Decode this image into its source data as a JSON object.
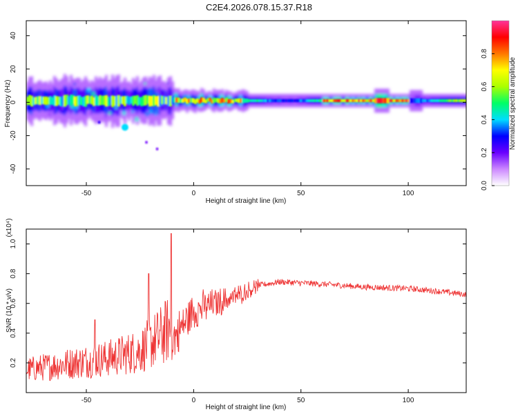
{
  "title": "C2E4.2026.078.15.37.R18",
  "chart_data": [
    {
      "type": "heatmap",
      "name": "spectrogram",
      "xlabel": "Height of straight line (km)",
      "ylabel": "Frequency (Hz)",
      "xlim": [
        -78,
        127
      ],
      "ylim": [
        -50,
        49
      ],
      "xticks": [
        "-50",
        "0",
        "50",
        "100"
      ],
      "xtick_values": [
        -50,
        0,
        50,
        100
      ],
      "yticks": [
        "-40",
        "-20",
        "0",
        "20",
        "40"
      ],
      "ytick_values": [
        -40,
        -20,
        0,
        20,
        40
      ],
      "colorbar": {
        "label": "Normalized spectral amplitude",
        "range": [
          0.0,
          1.0
        ],
        "ticks": [
          "0.0",
          "0.2",
          "0.4",
          "0.6",
          "0.8"
        ],
        "tick_values": [
          0.0,
          0.2,
          0.4,
          0.6,
          0.8
        ],
        "colors": [
          "#ffffff",
          "#cc88ff",
          "#6a00ff",
          "#0000ff",
          "#00ddff",
          "#00ff66",
          "#aaff00",
          "#ffff00",
          "#ff7700",
          "#ff0000",
          "#ff3399"
        ]
      },
      "band_center_hz": 1,
      "annotations": [
        {
          "label": "isolated blob",
          "x": -32,
          "y": -15,
          "amplitude": 0.3
        },
        {
          "label": "weak points",
          "x": -22,
          "y": -24,
          "amplitude": 0.08
        },
        {
          "label": "weak points",
          "x": -17,
          "y": -28,
          "amplitude": 0.08
        },
        {
          "label": "weak point",
          "x": -44,
          "y": -12,
          "amplitude": 0.15
        }
      ]
    },
    {
      "type": "line",
      "name": "snr",
      "xlabel": "Height of straight line (km)",
      "ylabel": "SNR (10 * v/v)",
      "y_multiplier": "(x10⁴)",
      "xlim": [
        -78,
        127
      ],
      "ylim": [
        0,
        1.1
      ],
      "xticks": [
        "-50",
        "0",
        "50",
        "100"
      ],
      "xtick_values": [
        -50,
        0,
        50,
        100
      ],
      "yticks": [
        "0.2",
        "0.4",
        "0.6",
        "0.8",
        "1.0"
      ],
      "ytick_values": [
        0.2,
        0.4,
        0.6,
        0.8,
        1.0
      ],
      "color": "#ee3333",
      "trend_x": [
        -78,
        -60,
        -40,
        -25,
        -15,
        -10,
        -5,
        0,
        10,
        20,
        30,
        40,
        60,
        80,
        100,
        115,
        127
      ],
      "trend_y": [
        0.12,
        0.15,
        0.18,
        0.22,
        0.3,
        0.35,
        0.45,
        0.55,
        0.6,
        0.65,
        0.72,
        0.745,
        0.73,
        0.71,
        0.7,
        0.68,
        0.66
      ],
      "spikes": [
        {
          "x": -10.5,
          "y": 1.07
        },
        {
          "x": -21,
          "y": 0.8
        },
        {
          "x": -46,
          "y": 0.49
        }
      ]
    }
  ]
}
